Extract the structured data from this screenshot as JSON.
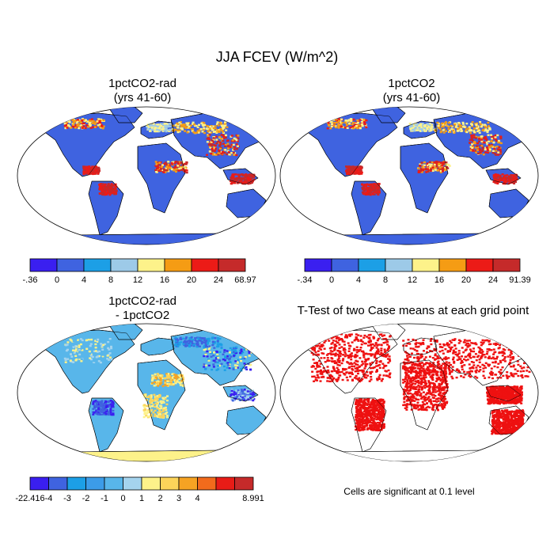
{
  "title": "JJA FCEV (W/m^2)",
  "panels": [
    {
      "title_line1": "1pctCO2-rad",
      "title_line2": "(yrs 41-60)",
      "colorbar": {
        "colors": [
          "#3a1ff0",
          "#3f63e0",
          "#1c9fe6",
          "#9dcae8",
          "#fdf28a",
          "#f59c14",
          "#ec1b17",
          "#c52a2a"
        ],
        "labels": [
          "-.36",
          "0",
          "4",
          "8",
          "12",
          "16",
          "20",
          "24",
          "68.97"
        ]
      }
    },
    {
      "title_line1": "1pctCO2",
      "title_line2": "(yrs 41-60)",
      "colorbar": {
        "colors": [
          "#3a1ff0",
          "#3f63e0",
          "#1c9fe6",
          "#9dcae8",
          "#fdf28a",
          "#f59c14",
          "#ec1b17",
          "#c52a2a"
        ],
        "labels": [
          "-.34",
          "0",
          "4",
          "8",
          "12",
          "16",
          "20",
          "24",
          "91.39"
        ]
      }
    },
    {
      "title_line1": "1pctCO2-rad",
      "title_line2": "- 1pctCO2",
      "colorbar": {
        "colors": [
          "#3a1ff0",
          "#3f63e0",
          "#1c9fe6",
          "#3c9ce8",
          "#58b6ea",
          "#a5d4ee",
          "#fdf28a",
          "#fcd45a",
          "#f6a323",
          "#f26b1c",
          "#e81c17",
          "#c52a2a"
        ],
        "labels": [
          "-22.416",
          "-4",
          "-3",
          "-2",
          "-1",
          "0",
          "1",
          "2",
          "3",
          "4",
          "",
          "",
          "8.991"
        ]
      }
    },
    {
      "title_line1": "T-Test of two Case means at each grid point",
      "footnote": "Cells are significant at 0.1 level"
    }
  ]
}
